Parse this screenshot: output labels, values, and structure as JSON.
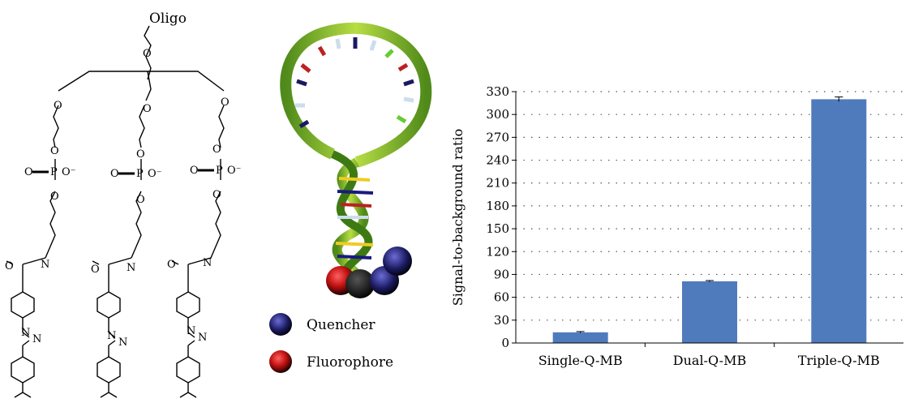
{
  "figure": {
    "structure_label": "Oligo",
    "legend": [
      {
        "label": "Quencher",
        "color": "#1a1a7a"
      },
      {
        "label": "Fluorophore",
        "color": "#cc1a1a"
      }
    ]
  },
  "chart_data": {
    "type": "bar",
    "categories": [
      "Single-Q-MB",
      "Dual-Q-MB",
      "Triple-Q-MB"
    ],
    "values": [
      14,
      81,
      320
    ],
    "errors": [
      1,
      1,
      3
    ],
    "ylabel": "Signal-to-background ratio",
    "ylim": [
      0,
      330
    ],
    "yticks": [
      0,
      30,
      60,
      90,
      120,
      150,
      180,
      210,
      240,
      270,
      300,
      330
    ],
    "grid": true,
    "bar_color": "#4f7bbd"
  }
}
